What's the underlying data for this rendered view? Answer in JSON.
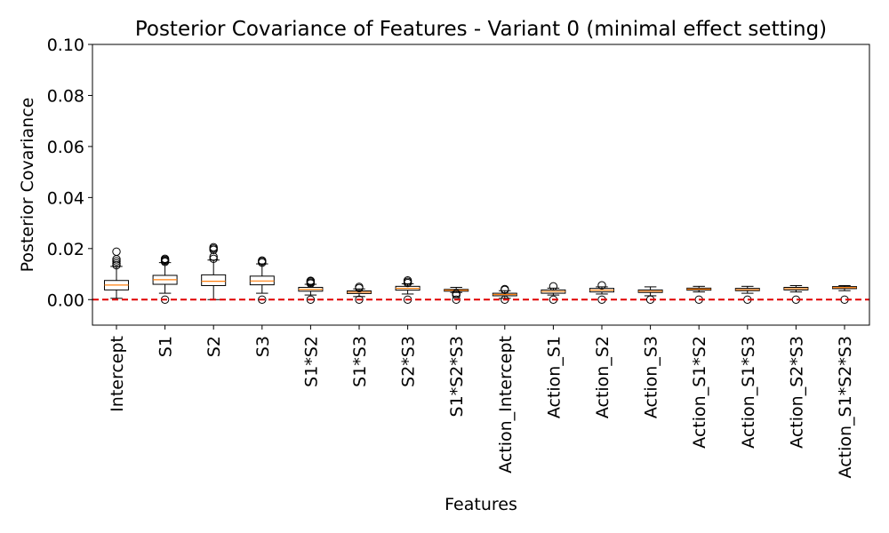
{
  "chart_data": {
    "type": "box",
    "title": "Posterior Covariance of Features - Variant 0 (minimal effect setting)",
    "xlabel": "Features",
    "ylabel": "Posterior Covariance",
    "ylim": [
      -0.01,
      0.1
    ],
    "yticks": [
      "0.00",
      "0.02",
      "0.04",
      "0.06",
      "0.08",
      "0.10"
    ],
    "ytick_values": [
      0.0,
      0.02,
      0.04,
      0.06,
      0.08,
      0.1
    ],
    "reference_line": {
      "y": 0.0,
      "color": "#e00000",
      "style": "dashed"
    },
    "box_color": "#000000",
    "median_color": "#ff7f0e",
    "grid": false,
    "categories": [
      "Intercept",
      "S1",
      "S2",
      "S3",
      "S1*S2",
      "S1*S3",
      "S2*S3",
      "S1*S2*S3",
      "Action_Intercept",
      "Action_S1",
      "Action_S2",
      "Action_S3",
      "Action_S1*S2",
      "Action_S1*S3",
      "Action_S2*S3",
      "Action_S1*S2*S3"
    ],
    "boxes": [
      {
        "whislo": 0.0005,
        "q1": 0.0038,
        "med": 0.0057,
        "q3": 0.0075,
        "whishi": 0.013,
        "fliers": [
          0.0135,
          0.0142,
          0.015,
          0.0158,
          0.0188
        ]
      },
      {
        "whislo": 0.0025,
        "q1": 0.006,
        "med": 0.0078,
        "q3": 0.0095,
        "whishi": 0.0145,
        "fliers": [
          0.0,
          0.0148,
          0.0152,
          0.0156,
          0.016
        ]
      },
      {
        "whislo": 0.0,
        "q1": 0.0055,
        "med": 0.0072,
        "q3": 0.0097,
        "whishi": 0.0155,
        "fliers": [
          0.016,
          0.0168,
          0.0195,
          0.02,
          0.0205
        ]
      },
      {
        "whislo": 0.0025,
        "q1": 0.0058,
        "med": 0.0073,
        "q3": 0.0092,
        "whishi": 0.014,
        "fliers": [
          0.0,
          0.0145,
          0.015,
          0.0153
        ]
      },
      {
        "whislo": 0.0018,
        "q1": 0.0033,
        "med": 0.004,
        "q3": 0.0048,
        "whishi": 0.006,
        "fliers": [
          0.0,
          0.0063,
          0.0067,
          0.0071,
          0.0074
        ]
      },
      {
        "whislo": 0.0012,
        "q1": 0.0024,
        "med": 0.0029,
        "q3": 0.0034,
        "whishi": 0.0042,
        "fliers": [
          0.0,
          0.0045,
          0.005
        ]
      },
      {
        "whislo": 0.0022,
        "q1": 0.0037,
        "med": 0.0044,
        "q3": 0.0052,
        "whishi": 0.0062,
        "fliers": [
          0.0,
          0.0065,
          0.007,
          0.0075
        ]
      },
      {
        "whislo": 0.0028,
        "q1": 0.0033,
        "med": 0.0037,
        "q3": 0.004,
        "whishi": 0.0048,
        "fliers": [
          0.0,
          0.0018,
          0.0024
        ]
      },
      {
        "whislo": 0.0005,
        "q1": 0.0015,
        "med": 0.002,
        "q3": 0.0025,
        "whishi": 0.0035,
        "fliers": [
          0.0,
          0.0038,
          0.0041
        ]
      },
      {
        "whislo": 0.0018,
        "q1": 0.0025,
        "med": 0.0032,
        "q3": 0.0038,
        "whishi": 0.0045,
        "fliers": [
          0.0,
          0.0052
        ]
      },
      {
        "whislo": 0.0022,
        "q1": 0.003,
        "med": 0.0037,
        "q3": 0.0044,
        "whishi": 0.005,
        "fliers": [
          0.0,
          0.0056
        ]
      },
      {
        "whislo": 0.0015,
        "q1": 0.0028,
        "med": 0.0033,
        "q3": 0.0038,
        "whishi": 0.005,
        "fliers": [
          0.0
        ]
      },
      {
        "whislo": 0.003,
        "q1": 0.0037,
        "med": 0.0041,
        "q3": 0.0045,
        "whishi": 0.0052,
        "fliers": [
          0.0
        ]
      },
      {
        "whislo": 0.0025,
        "q1": 0.0035,
        "med": 0.0039,
        "q3": 0.0044,
        "whishi": 0.0052,
        "fliers": [
          0.0
        ]
      },
      {
        "whislo": 0.003,
        "q1": 0.0038,
        "med": 0.0043,
        "q3": 0.0048,
        "whishi": 0.0055,
        "fliers": [
          0.0
        ]
      },
      {
        "whislo": 0.0035,
        "q1": 0.0043,
        "med": 0.0047,
        "q3": 0.0051,
        "whishi": 0.0055,
        "fliers": [
          0.0
        ]
      }
    ]
  }
}
